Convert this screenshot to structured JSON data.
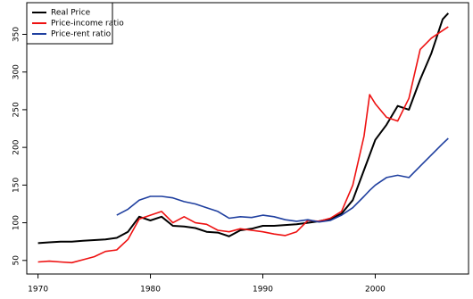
{
  "chart_data": {
    "type": "line",
    "x": [
      1970,
      1971,
      1972,
      1973,
      1974,
      1975,
      1976,
      1977,
      1978,
      1979,
      1980,
      1981,
      1982,
      1983,
      1984,
      1985,
      1986,
      1987,
      1988,
      1989,
      1990,
      1991,
      1992,
      1993,
      1994,
      1995,
      1996,
      1997,
      1998,
      1999,
      1999.5,
      2000,
      2001,
      2002,
      2003,
      2004,
      2005,
      2006,
      2006.5
    ],
    "series": [
      {
        "name": "Real Price",
        "color": "#000000",
        "values": [
          73,
          74,
          75,
          75,
          76,
          77,
          78,
          80,
          88,
          108,
          103,
          108,
          96,
          95,
          93,
          88,
          87,
          82,
          90,
          92,
          96,
          96,
          97,
          98,
          100,
          102,
          105,
          112,
          130,
          170,
          190,
          210,
          230,
          255,
          250,
          290,
          325,
          370,
          378
        ]
      },
      {
        "name": "Price-income ratio",
        "color": "#ee1111",
        "values": [
          48,
          49,
          48,
          47,
          51,
          55,
          62,
          64,
          78,
          105,
          110,
          115,
          100,
          108,
          100,
          98,
          90,
          88,
          92,
          90,
          88,
          85,
          83,
          88,
          103,
          102,
          106,
          115,
          150,
          215,
          270,
          258,
          240,
          235,
          265,
          330,
          345,
          355,
          360
        ]
      },
      {
        "name": "Price-rent ratio",
        "color": "#1f3f9f",
        "values": [
          null,
          null,
          null,
          null,
          null,
          null,
          null,
          110,
          118,
          130,
          135,
          135,
          133,
          128,
          125,
          120,
          115,
          106,
          108,
          107,
          110,
          108,
          104,
          102,
          104,
          101,
          103,
          110,
          120,
          135,
          143,
          150,
          160,
          163,
          160,
          175,
          190,
          205,
          212
        ]
      }
    ],
    "xlim": [
      1969,
      2008.3
    ],
    "xticks": [
      1970,
      1980,
      1990,
      2000
    ],
    "ylim": [
      32,
      392
    ],
    "yticks": [
      50,
      100,
      150,
      200,
      250,
      300,
      350
    ],
    "legend": "top-left"
  }
}
